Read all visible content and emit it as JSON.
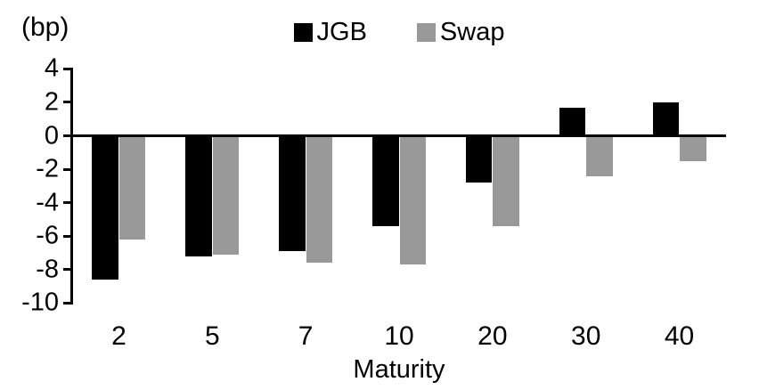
{
  "chart": {
    "unit_label": "(bp)",
    "x_axis_title": "Maturity"
  },
  "chart_data": {
    "type": "bar",
    "title": "",
    "xlabel": "Maturity",
    "ylabel": "(bp)",
    "categories": [
      "2",
      "5",
      "7",
      "10",
      "20",
      "30",
      "40"
    ],
    "series": [
      {
        "name": "JGB",
        "color": "#000000",
        "values": [
          -8.6,
          -7.2,
          -6.9,
          -5.4,
          -2.8,
          1.7,
          2.0
        ]
      },
      {
        "name": "Swap",
        "color": "#999999",
        "values": [
          -6.2,
          -7.1,
          -7.6,
          -7.7,
          -5.4,
          -2.4,
          -1.5
        ]
      }
    ],
    "ylim": [
      -10,
      4
    ],
    "y_ticks": [
      4,
      2,
      0,
      -2,
      -4,
      -6,
      -8,
      -10
    ],
    "legend_position": "top-center",
    "grid": false,
    "background_color": "#ffffff",
    "axis_color": "#000000"
  }
}
